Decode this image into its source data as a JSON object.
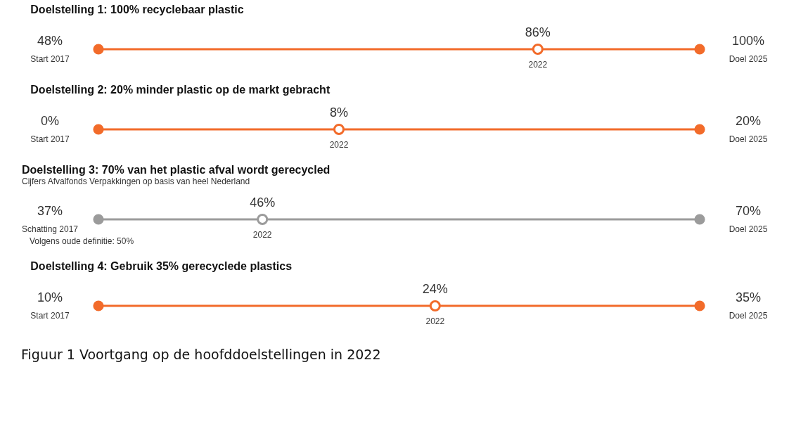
{
  "chart_data": [
    {
      "type": "other",
      "title": "Doelstelling 1: 100% recyclebaar plastic",
      "categories": [
        "Start 2017",
        "2022",
        "Doel 2025"
      ],
      "values": [
        48,
        86,
        100
      ],
      "value_labels": [
        "48%",
        "86%",
        "100%"
      ],
      "color": "#f26b2a"
    },
    {
      "type": "other",
      "title": "Doelstelling 2: 20% minder plastic op de markt gebracht",
      "categories": [
        "Start 2017",
        "2022",
        "Doel 2025"
      ],
      "values": [
        0,
        8,
        20
      ],
      "value_labels": [
        "0%",
        "8%",
        "20%"
      ],
      "color": "#f26b2a"
    },
    {
      "type": "other",
      "title": "Doelstelling 3: 70% van het plastic afval wordt gerecycled",
      "subtitle": "Cijfers Afvalfonds Verpakkingen op basis van heel Nederland",
      "categories": [
        "Schatting 2017",
        "2022",
        "Doel 2025"
      ],
      "values": [
        37,
        46,
        70
      ],
      "value_labels": [
        "37%",
        "46%",
        "70%"
      ],
      "color": "#9b9b9b",
      "annotations": [
        "Volgens oude definitie: 50%"
      ]
    },
    {
      "type": "other",
      "title": "Doelstelling 4: Gebruik 35% gerecyclede plastics",
      "categories": [
        "Start 2017",
        "2022",
        "Doel 2025"
      ],
      "values": [
        10,
        24,
        35
      ],
      "value_labels": [
        "10%",
        "24%",
        "35%"
      ],
      "color": "#f26b2a"
    },
    {
      "type": "other",
      "annotations": [
        "Figuur 1 Voortgang op de hoofddoelstellingen in 2022"
      ]
    }
  ]
}
